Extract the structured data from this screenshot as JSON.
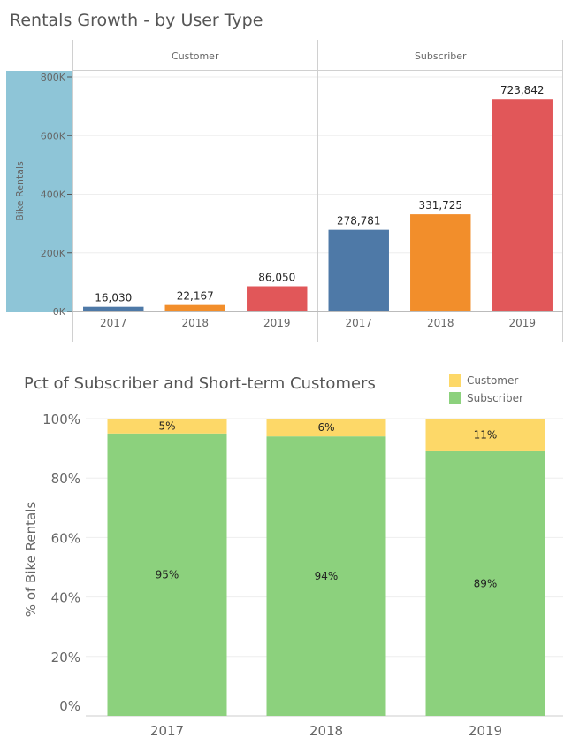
{
  "chart_data": [
    {
      "type": "bar",
      "title": "Rentals Growth  - by User Type",
      "ylabel": "Bike Rentals",
      "ylim": [
        0,
        800000
      ],
      "yticks": [
        0,
        200000,
        400000,
        600000,
        800000
      ],
      "ytick_labels": [
        "0K",
        "200K",
        "400K",
        "600K",
        "800K"
      ],
      "categories": [
        "2017",
        "2018",
        "2019"
      ],
      "panels": [
        {
          "name": "Customer",
          "values": [
            16030,
            22167,
            86050
          ],
          "labels": [
            "16,030",
            "22,167",
            "86,050"
          ]
        },
        {
          "name": "Subscriber",
          "values": [
            278781,
            331725,
            723842
          ],
          "labels": [
            "278,781",
            "331,725",
            "723,842"
          ]
        }
      ],
      "year_colors": [
        "#4e79a7",
        "#f28e2b",
        "#e15759"
      ],
      "grid": true
    },
    {
      "type": "bar",
      "stacked": true,
      "title": "Pct of Subscriber and Short-term Customers",
      "ylabel": "% of Bike Rentals",
      "ylim": [
        0,
        100
      ],
      "yticks": [
        0,
        20,
        40,
        60,
        80,
        100
      ],
      "ytick_labels": [
        "0%",
        "20%",
        "40%",
        "60%",
        "80%",
        "100%"
      ],
      "categories": [
        "2017",
        "2018",
        "2019"
      ],
      "series": [
        {
          "name": "Subscriber",
          "values": [
            95,
            94,
            89
          ],
          "labels": [
            "95%",
            "94%",
            "89%"
          ],
          "color": "#8cd17d"
        },
        {
          "name": "Customer",
          "values": [
            5,
            6,
            11
          ],
          "labels": [
            "5%",
            "6%",
            "11%"
          ],
          "color": "#fdd868"
        }
      ],
      "legend": {
        "position": "top-right",
        "entries": [
          "Customer",
          "Subscriber"
        ]
      },
      "grid": true
    }
  ]
}
